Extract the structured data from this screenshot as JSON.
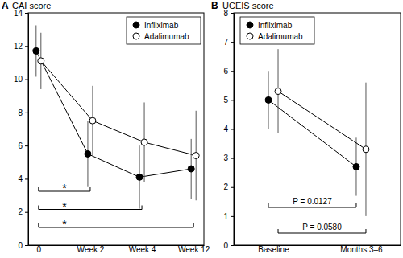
{
  "chart_data": [
    {
      "type": "line",
      "panel": "A",
      "title": "CAI score",
      "categories": [
        "0",
        "Week 2",
        "Week 4",
        "Week 12"
      ],
      "series": [
        {
          "name": "Infliximab",
          "color": "#000000",
          "marker": "filled-circle",
          "values": [
            11.7,
            5.5,
            4.1,
            4.6
          ],
          "errors": [
            1.55,
            2.0,
            1.9,
            1.8
          ]
        },
        {
          "name": "Adalimumab",
          "color": "#000000",
          "marker": "open-circle",
          "values": [
            11.1,
            7.5,
            6.2,
            5.4
          ],
          "errors": [
            1.7,
            2.1,
            2.4,
            2.7
          ]
        }
      ],
      "ylim": [
        0,
        14
      ],
      "yticks": [
        0,
        2,
        4,
        6,
        8,
        10,
        12,
        14
      ],
      "legend": "upper right",
      "annotations": [
        {
          "from": "0",
          "to": "Week 2",
          "label": "*"
        },
        {
          "from": "0",
          "to": "Week 4",
          "label": "*"
        },
        {
          "from": "0",
          "to": "Week 12",
          "label": "*"
        }
      ]
    },
    {
      "type": "line",
      "panel": "B",
      "title": "UCEIS score",
      "categories": [
        "Baseline",
        "Months 3–6"
      ],
      "series": [
        {
          "name": "Infliximab",
          "color": "#000000",
          "marker": "filled-circle",
          "values": [
            5.0,
            2.7
          ],
          "errors": [
            1.0,
            1.0
          ]
        },
        {
          "name": "Adalimumab",
          "color": "#000000",
          "marker": "open-circle",
          "values": [
            5.3,
            3.3
          ],
          "errors": [
            1.45,
            2.3
          ]
        }
      ],
      "ylim": [
        0,
        8
      ],
      "yticks": [
        0,
        1,
        2,
        3,
        4,
        5,
        6,
        7,
        8
      ],
      "legend": "upper left",
      "annotations": [
        {
          "from": "Baseline",
          "to": "Months 3–6",
          "label": "P = 0.0127"
        },
        {
          "from": "Baseline",
          "to": "Months 3–6",
          "label": "P = 0.0580"
        }
      ]
    }
  ]
}
